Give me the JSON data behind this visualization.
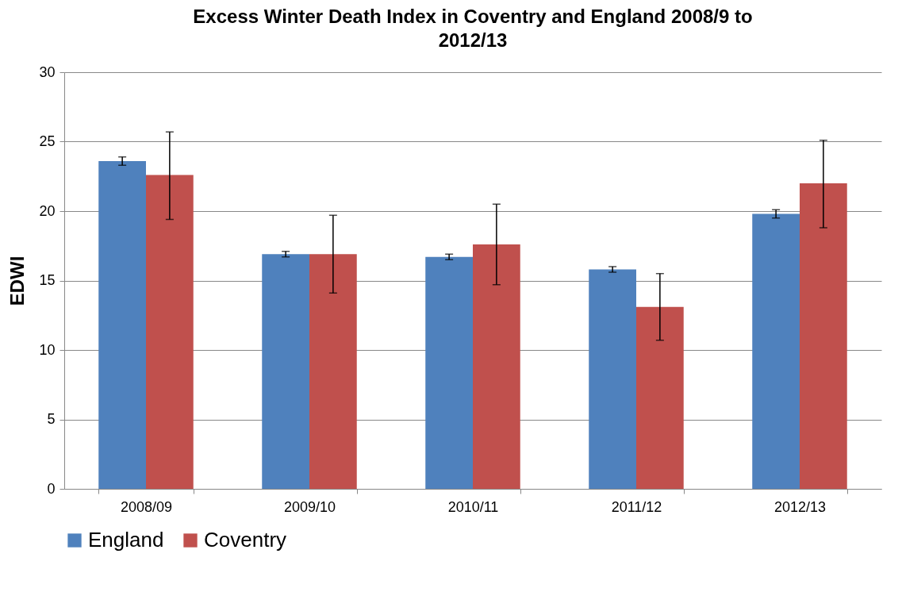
{
  "chart_data": {
    "type": "bar",
    "title": "Excess Winter Death Index in Coventry and England 2008/9 to 2012/13",
    "ylabel": "EDWI",
    "categories": [
      "2008/09",
      "2009/10",
      "2010/11",
      "2011/12",
      "2012/13"
    ],
    "series": [
      {
        "name": "England",
        "color": "#4f81bd",
        "values": [
          23.6,
          16.9,
          16.7,
          15.8,
          19.8
        ],
        "errors": [
          [
            23.3,
            23.9
          ],
          [
            16.7,
            17.1
          ],
          [
            16.5,
            16.9
          ],
          [
            15.6,
            16.0
          ],
          [
            19.5,
            20.1
          ]
        ]
      },
      {
        "name": "Coventry",
        "color": "#c0504d",
        "values": [
          22.6,
          16.9,
          17.6,
          13.1,
          22.0
        ],
        "errors": [
          [
            19.4,
            25.7
          ],
          [
            14.1,
            19.7
          ],
          [
            14.7,
            20.5
          ],
          [
            10.7,
            15.5
          ],
          [
            18.8,
            25.1
          ]
        ]
      }
    ],
    "ylim": [
      0,
      30
    ],
    "yticks": [
      0,
      5,
      10,
      15,
      20,
      25,
      30
    ],
    "grid": "y",
    "legend": "bottom"
  }
}
